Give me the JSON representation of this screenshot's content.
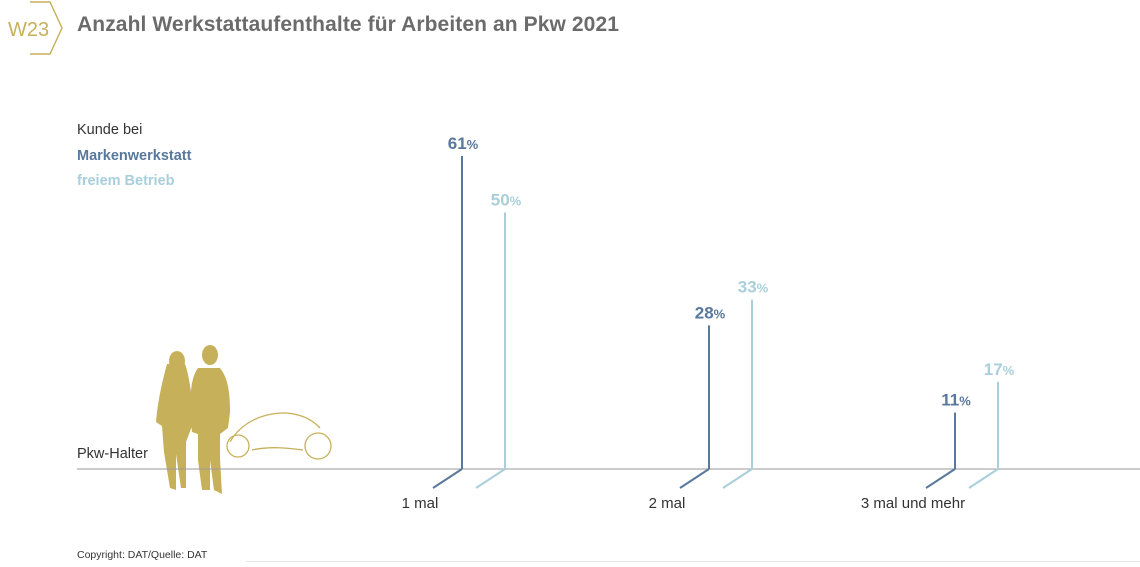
{
  "badge": {
    "code": "W23"
  },
  "title": "Anzahl Werkstattaufenthalte für Arbeiten an Pkw 2021",
  "legend": {
    "heading": "Kunde bei",
    "entries": [
      "Markenwerkstatt",
      "freiem Betrieb"
    ]
  },
  "baseline_label": "Pkw-Halter",
  "copyright": "Copyright: DAT/Quelle: DAT",
  "colors": {
    "title": "#6b6b6b",
    "accent_gold": "#c7b05a",
    "series_dark": "#58789c",
    "series_light": "#a9cfdb",
    "baseline": "#9a9a9a"
  },
  "icons": [
    "couple-silhouette-icon",
    "car-outline-icon"
  ],
  "chart_data": {
    "type": "bar",
    "categories": [
      "1 mal",
      "2 mal",
      "3 mal und mehr"
    ],
    "unit": "%",
    "series": [
      {
        "name": "Markenwerkstatt",
        "values": [
          61,
          28,
          11
        ],
        "color": "#58789c"
      },
      {
        "name": "freiem Betrieb",
        "values": [
          50,
          33,
          17
        ],
        "color": "#a9cfdb"
      }
    ],
    "ylim": [
      0,
      61
    ],
    "grid": false,
    "legend": "top-left"
  }
}
